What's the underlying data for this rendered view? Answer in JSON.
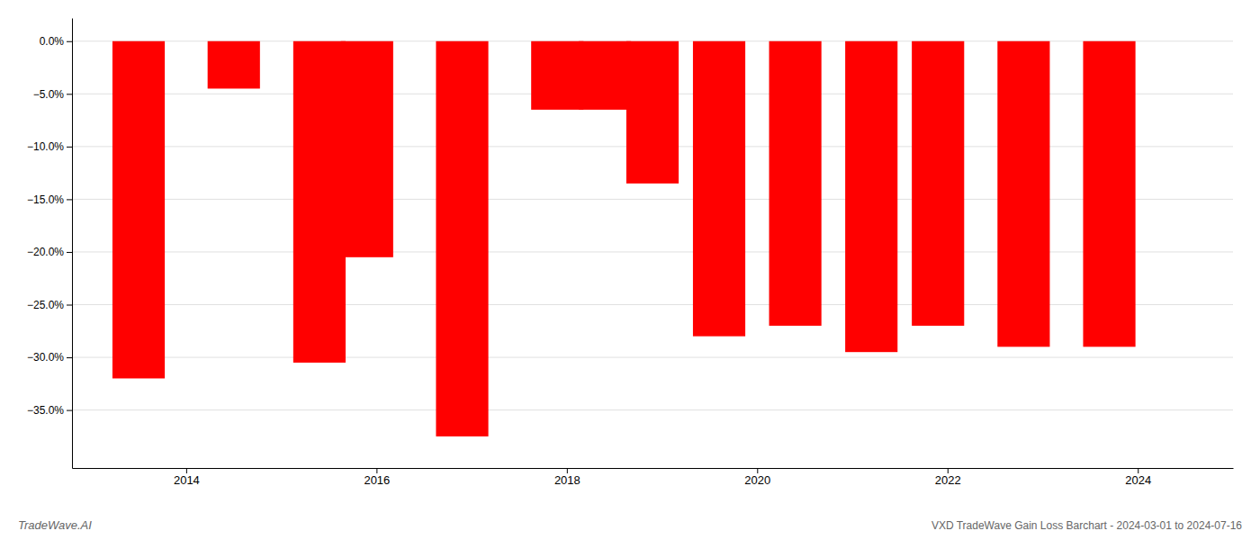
{
  "chart_data": {
    "type": "bar",
    "title": "VXD TradeWave Gain Loss Barchart - 2024-03-01 to 2024-07-16",
    "annotations": [
      "TradeWave.AI"
    ],
    "x": [
      2013.5,
      2014.5,
      2015.4,
      2015.9,
      2016.9,
      2017.9,
      2018.4,
      2018.9,
      2019.6,
      2020.4,
      2021.2,
      2021.9,
      2022.8,
      2023.7
    ],
    "values": [
      -0.32,
      -0.045,
      -0.305,
      -0.205,
      -0.375,
      -0.065,
      -0.065,
      -0.135,
      -0.28,
      -0.27,
      -0.295,
      -0.27,
      -0.29,
      -0.29
    ],
    "color": "#ff0000",
    "xlim": [
      2012.8,
      2025.0
    ],
    "xticks": [
      2014,
      2016,
      2018,
      2020,
      2022,
      2024
    ],
    "ylim": [
      -0.405,
      0.022
    ],
    "yticks": [
      {
        "value": 0.0,
        "label": "0.0%"
      },
      {
        "value": -0.05,
        "label": "−5.0%"
      },
      {
        "value": -0.1,
        "label": "−10.0%"
      },
      {
        "value": -0.15,
        "label": "−15.0%"
      },
      {
        "value": -0.2,
        "label": "−20.0%"
      },
      {
        "value": -0.25,
        "label": "−25.0%"
      },
      {
        "value": -0.3,
        "label": "−30.0%"
      },
      {
        "value": -0.35,
        "label": "−35.0%"
      }
    ],
    "grid": true
  }
}
